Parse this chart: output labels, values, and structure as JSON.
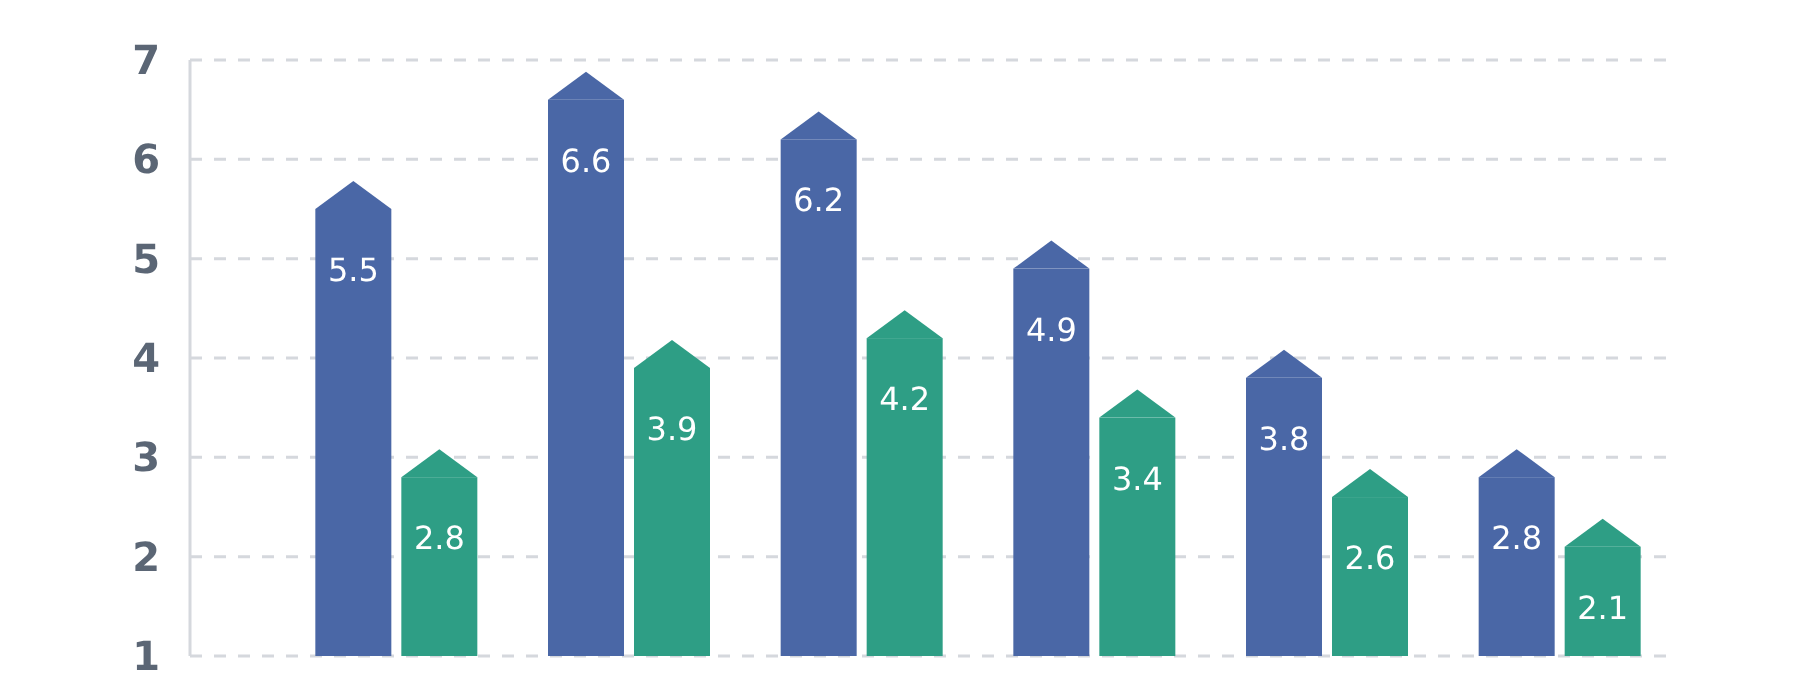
{
  "chart_data": {
    "type": "bar",
    "categories": [
      null,
      null,
      null,
      null,
      null,
      null
    ],
    "series": [
      {
        "color": "#4a67a6",
        "values": [
          5.5,
          6.6,
          6.2,
          4.9,
          3.8,
          2.8
        ]
      },
      {
        "color": "#2e9e85",
        "values": [
          2.8,
          3.9,
          4.2,
          3.4,
          2.6,
          2.1
        ]
      }
    ],
    "ylim": [
      1,
      7
    ],
    "yticks": [
      1,
      2,
      3,
      4,
      5,
      6,
      7
    ],
    "grid": "y",
    "data_labels": true
  }
}
